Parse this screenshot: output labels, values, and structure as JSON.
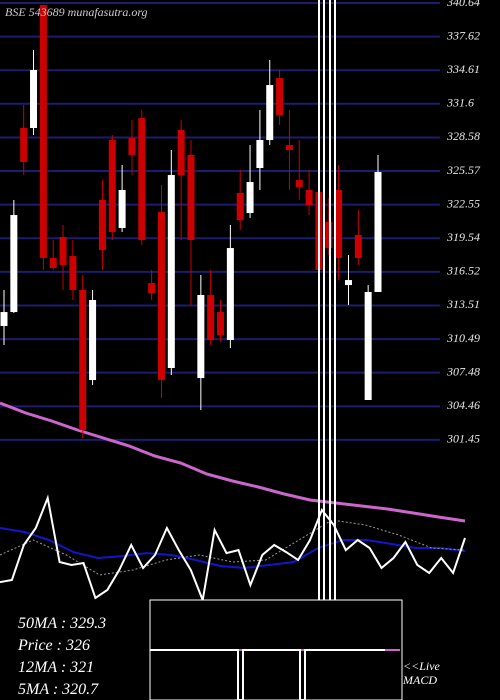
{
  "header": "BSE 543689 munafasutra.org",
  "stats": [
    "50MA : 329.3",
    "Price : 326",
    "12MA : 321",
    "5MA : 320.7"
  ],
  "macd_label": [
    "<<Live",
    "MACD"
  ],
  "chart_data": {
    "type": "candlestick",
    "up_color": "#ffffff",
    "down_color": "#cc0000",
    "grid": true,
    "grid_color": "#1c1c70",
    "ylim": [
      278.12,
      340.91
    ],
    "yticks": [
      340.64,
      337.62,
      334.61,
      331.6,
      328.58,
      325.57,
      322.55,
      319.54,
      316.52,
      313.51,
      310.49,
      307.48,
      304.46,
      301.45
    ],
    "open": [
      311.67,
      312.92,
      329.43,
      329.43,
      340.46,
      317.77,
      319.65,
      317.95,
      314.9,
      306.82,
      322.97,
      328.35,
      320.46,
      328.53,
      330.32,
      315.52,
      321.89,
      307.9,
      329.25,
      327.01,
      307.0,
      314.45,
      312.92,
      310.41,
      323.6,
      321.8,
      325.84,
      328.35,
      333.91,
      327.9,
      324.76,
      323.87,
      323.69,
      321.0,
      323.87,
      315.34,
      319.83,
      305.03,
      314.72
    ],
    "high": [
      314.9,
      322.97,
      331.49,
      336.42,
      340.46,
      319.38,
      320.73,
      319.38,
      316.24,
      314.9,
      324.76,
      328.8,
      326.11,
      330.15,
      331.04,
      316.69,
      324.31,
      327.45,
      330.15,
      328.35,
      316.24,
      316.69,
      314.0,
      320.73,
      325.66,
      327.9,
      331.04,
      335.53,
      334.63,
      331.04,
      328.35,
      325.66,
      324.76,
      323.15,
      326.11,
      318.04,
      322.07,
      315.34,
      327.01
    ],
    "low": [
      309.96,
      312.83,
      325.21,
      328.8,
      316.69,
      316.69,
      314.9,
      314.0,
      301.62,
      306.37,
      316.69,
      319.38,
      320.1,
      325.21,
      318.93,
      314.0,
      305.21,
      307.27,
      319.38,
      313.55,
      304.13,
      309.96,
      310.23,
      309.69,
      320.28,
      321.35,
      323.87,
      327.9,
      329.7,
      323.87,
      322.97,
      321.62,
      316.24,
      318.04,
      315.79,
      313.55,
      317.14,
      305.03,
      314.72
    ],
    "close": [
      312.92,
      321.62,
      326.38,
      334.63,
      317.77,
      316.87,
      317.14,
      314.9,
      302.34,
      314.0,
      318.48,
      320.1,
      323.87,
      327.01,
      319.38,
      314.63,
      306.82,
      325.21,
      325.21,
      319.38,
      314.45,
      310.41,
      310.86,
      318.66,
      321.17,
      324.58,
      328.35,
      333.28,
      330.59,
      327.45,
      324.14,
      322.52,
      316.69,
      318.66,
      317.77,
      315.79,
      317.77,
      314.72,
      325.48
    ],
    "lines": [
      {
        "color": "#cc66cc",
        "width": 3,
        "values": [
          304.76,
          303.86,
          303.15,
          302.34,
          301.62,
          300.9,
          300.0,
          299.38,
          298.39,
          297.76,
          297.23,
          296.6,
          296.06,
          295.79,
          295.52,
          295.25,
          294.89,
          294.53,
          294.18
        ]
      },
      {
        "color": "#1414cc",
        "width": 2,
        "values": [
          293.55,
          293.19,
          292.47,
          291.39,
          290.86,
          291.03,
          291.3,
          291.13,
          290.68,
          290.14,
          289.96,
          290.23,
          290.5,
          291.75,
          292.47,
          292.47,
          292.11,
          291.75,
          291.75,
          291.48
        ]
      },
      {
        "color": "#999999",
        "width": 1,
        "dash": true,
        "values": [
          291.13,
          292.47,
          291.13,
          289.33,
          289.78,
          290.68,
          291.13,
          290.5,
          290.68,
          292.47,
          294.27,
          293.82,
          292.92,
          291.75,
          291.57
        ]
      },
      {
        "color": "#ffffff",
        "width": 2,
        "values": [
          288.7,
          288.88,
          292.02,
          293.55,
          296.24,
          290.5,
          290.23,
          290.41,
          287.27,
          287.99,
          289.78,
          292.02,
          289.96,
          291.13,
          293.55,
          291.57,
          289.78,
          287.09,
          293.37,
          291.3,
          291.57,
          288.43,
          291.13,
          292.02,
          291.39,
          290.68,
          292.47,
          295.16,
          293.82,
          291.57,
          292.47,
          291.75,
          289.96,
          290.86,
          292.29,
          290.23,
          289.51,
          290.86,
          289.51,
          292.65
        ]
      }
    ]
  }
}
